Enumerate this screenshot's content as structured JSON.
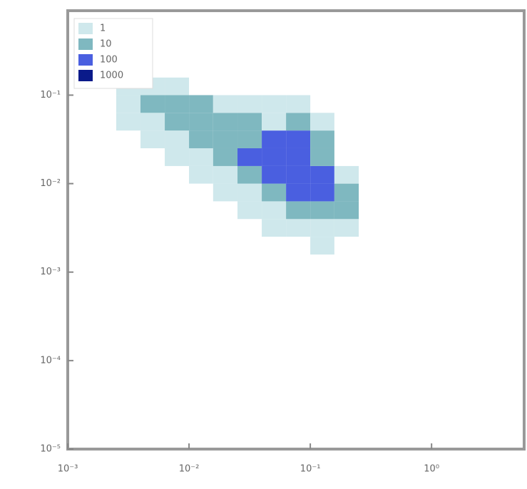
{
  "chart_data": {
    "type": "heatmap",
    "xscale": "log",
    "yscale": "log",
    "xlim": [
      0.001,
      5.8
    ],
    "ylim": [
      1e-05,
      0.9
    ],
    "xticks": [
      {
        "value": 0.001,
        "label": "10⁻³"
      },
      {
        "value": 0.01,
        "label": "10⁻²"
      },
      {
        "value": 0.1,
        "label": "10⁻¹"
      },
      {
        "value": 1,
        "label": "10⁰"
      }
    ],
    "yticks": [
      {
        "value": 1e-05,
        "label": "10⁻⁵"
      },
      {
        "value": 0.0001,
        "label": "10⁻⁴"
      },
      {
        "value": 0.001,
        "label": "10⁻³"
      },
      {
        "value": 0.01,
        "label": "10⁻²"
      },
      {
        "value": 0.1,
        "label": "10⁻¹"
      }
    ],
    "x_edges": [
      0.00251,
      0.00398,
      0.00631,
      0.01,
      0.0158,
      0.0251,
      0.0398,
      0.0631,
      0.1,
      0.158,
      0.251
    ],
    "y_edges": [
      0.00158,
      0.00251,
      0.00398,
      0.00631,
      0.01,
      0.0158,
      0.0251,
      0.0398,
      0.0631,
      0.1,
      0.158
    ],
    "z": [
      [
        null,
        null,
        null,
        null,
        null,
        null,
        null,
        null,
        2,
        null
      ],
      [
        null,
        null,
        null,
        null,
        null,
        null,
        2,
        4,
        8,
        3
      ],
      [
        null,
        null,
        null,
        null,
        null,
        2,
        5,
        30,
        60,
        10
      ],
      [
        null,
        null,
        null,
        null,
        2,
        6,
        20,
        250,
        700,
        20
      ],
      [
        null,
        null,
        null,
        2,
        5,
        30,
        200,
        500,
        150,
        6
      ],
      [
        null,
        null,
        2,
        6,
        20,
        150,
        400,
        600,
        80,
        null
      ],
      [
        null,
        2,
        6,
        18,
        40,
        60,
        120,
        300,
        20,
        null
      ],
      [
        3,
        8,
        15,
        30,
        20,
        12,
        8,
        10,
        4,
        null
      ],
      [
        6,
        12,
        25,
        15,
        8,
        5,
        4,
        6,
        null,
        null
      ],
      [
        2,
        3,
        2,
        null,
        null,
        null,
        null,
        null,
        null,
        null
      ]
    ],
    "levels": [
      1,
      10,
      100,
      1000
    ],
    "colors": [
      "#cfe8ec",
      "#7fb8c0",
      "#4a5fe0",
      "#0a1a8a"
    ],
    "legend": "upper left"
  }
}
